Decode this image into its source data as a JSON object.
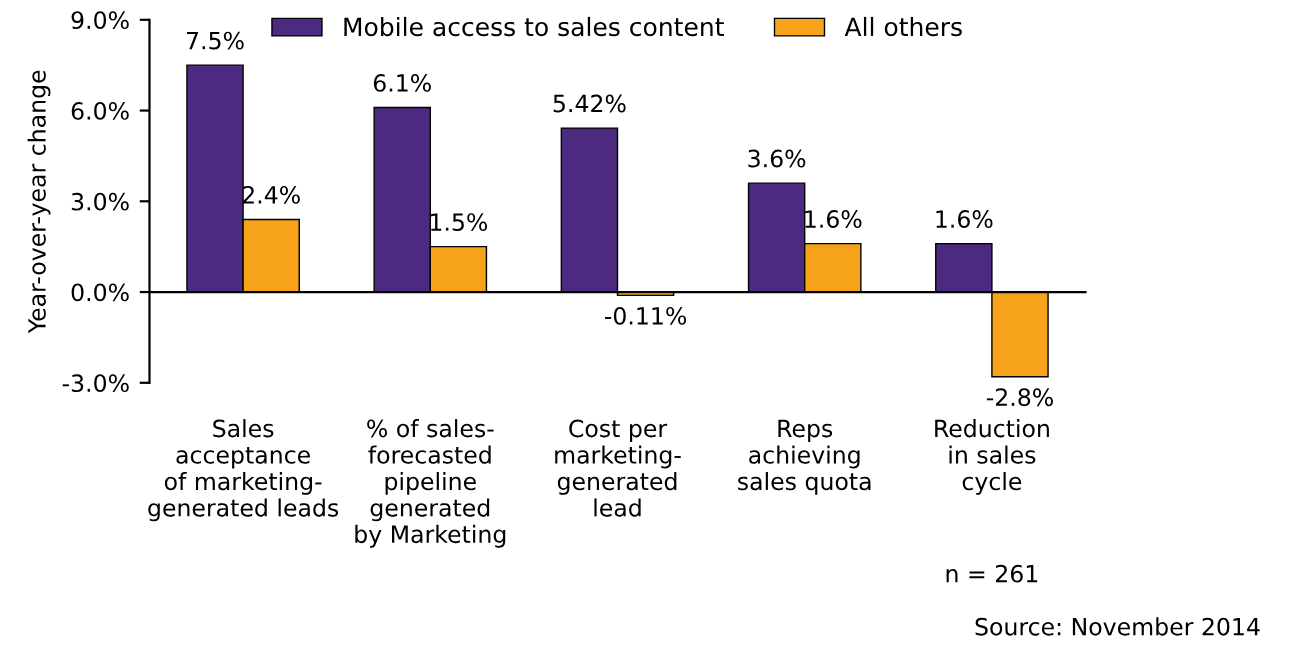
{
  "chart_data": {
    "type": "bar",
    "ylabel": "Year-over-year change",
    "categories": [
      "Sales\nacceptance\nof marketing-\ngenerated leads",
      "% of sales-\nforecasted\npipeline\ngenerated\nby Marketing",
      "Cost per\nmarketing-\ngenerated\nlead",
      "Reps\nachieving\nsales quota",
      "Reduction\nin sales\ncycle"
    ],
    "series": [
      {
        "name": "Mobile access to sales content",
        "color": "#4b2a7f",
        "values": [
          7.5,
          6.1,
          5.42,
          3.6,
          1.6
        ],
        "value_labels": [
          "7.5%",
          "6.1%",
          "5.42%",
          "3.6%",
          "1.6%"
        ]
      },
      {
        "name": "All others",
        "color": "#f7a21b",
        "values": [
          2.4,
          1.5,
          -0.11,
          1.6,
          -2.8
        ],
        "value_labels": [
          "2.4%",
          "1.5%",
          "-0.11%",
          "1.6%",
          "-2.8%"
        ]
      }
    ],
    "ylim": [
      -3.0,
      9.0
    ],
    "yticks": [
      {
        "value": -3.0,
        "label": "-3.0%"
      },
      {
        "value": 0.0,
        "label": "0.0%"
      },
      {
        "value": 3.0,
        "label": "3.0%"
      },
      {
        "value": 6.0,
        "label": "6.0%"
      },
      {
        "value": 9.0,
        "label": "9.0%"
      }
    ],
    "legend": "top",
    "annotations": [
      "n = 261",
      "Source: November 2014"
    ]
  }
}
